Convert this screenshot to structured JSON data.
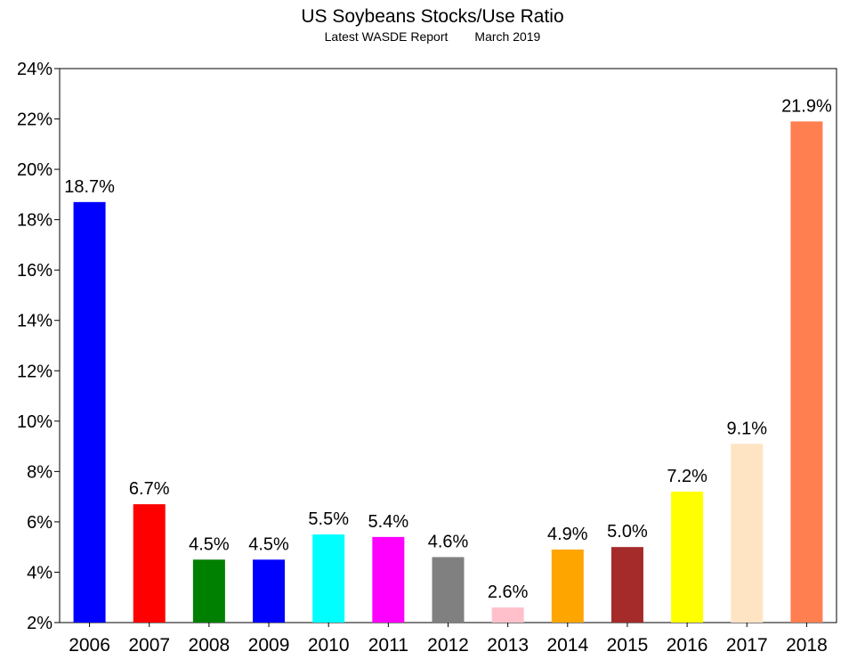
{
  "chart_data": {
    "type": "bar",
    "title": "US Soybeans Stocks/Use Ratio",
    "subtitle_source": "Latest WASDE Report",
    "subtitle_date": "March 2019",
    "categories": [
      "2006",
      "2007",
      "2008",
      "2009",
      "2010",
      "2011",
      "2012",
      "2013",
      "2014",
      "2015",
      "2016",
      "2017",
      "2018"
    ],
    "values": [
      18.7,
      6.7,
      4.5,
      4.5,
      5.5,
      5.4,
      4.6,
      2.6,
      4.9,
      5.0,
      7.2,
      9.1,
      21.9
    ],
    "value_labels": [
      "18.7%",
      "6.7%",
      "4.5%",
      "4.5%",
      "5.5%",
      "5.4%",
      "4.6%",
      "2.6%",
      "4.9%",
      "5.0%",
      "7.2%",
      "9.1%",
      "21.9%"
    ],
    "bar_colors": [
      "#0000ff",
      "#ff0000",
      "#008000",
      "#0000ff",
      "#00ffff",
      "#ff00ff",
      "#808080",
      "#ffc0cb",
      "#ffa500",
      "#a52a2a",
      "#ffff00",
      "#ffe4c4",
      "#ff7f50"
    ],
    "ylim": [
      2,
      24
    ],
    "yticks": [
      2,
      4,
      6,
      8,
      10,
      12,
      14,
      16,
      18,
      20,
      22,
      24
    ],
    "ytick_labels": [
      "2%",
      "4%",
      "6%",
      "8%",
      "10%",
      "12%",
      "14%",
      "16%",
      "18%",
      "20%",
      "22%",
      "24%"
    ],
    "xlabel": "",
    "ylabel": "",
    "grid": false,
    "legend": "none"
  }
}
